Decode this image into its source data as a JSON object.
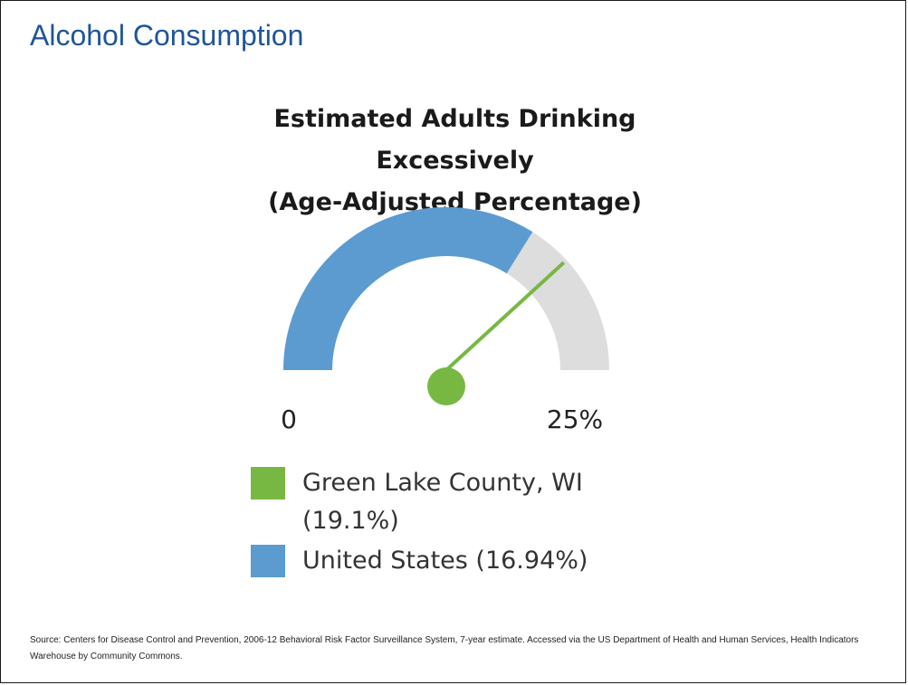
{
  "slide": {
    "title": "Alcohol Consumption",
    "source": "Source: Centers for Disease Control and Prevention, 2006-12 Behavioral Risk Factor Surveillance System, 7-year estimate.  Accessed via the US Department  of Health and Human Services, Health Indicators Warehouse by Community Commons."
  },
  "chart_data": {
    "type": "gauge",
    "title_lines": [
      "Estimated Adults Drinking",
      "Excessively",
      "(Age-Adjusted Percentage)"
    ],
    "min": 0,
    "max": 25,
    "min_label": "0",
    "max_label": "25%",
    "background_color": "#dddddd",
    "series": [
      {
        "name": "Green Lake County, WI",
        "value": 19.1,
        "display": "Green Lake County, WI (19.1%)",
        "color": "#77b843",
        "style": "needle"
      },
      {
        "name": "United States",
        "value": 16.94,
        "display": "United States (16.94%)",
        "color": "#5b9bd0",
        "style": "fill"
      }
    ]
  }
}
